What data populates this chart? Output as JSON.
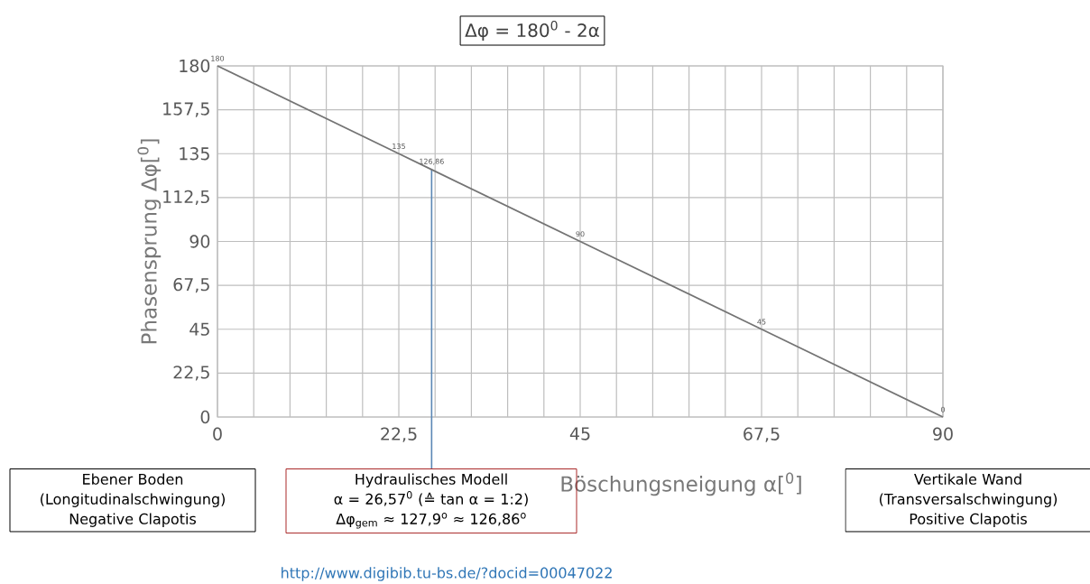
{
  "chart_data": {
    "type": "line",
    "title": "Δφ = 180$^{0}$ - 2α",
    "xlabel": "Böschungsneigung α[$^{0}$]",
    "ylabel": "Phasensprung  Δφ[$^{0}$]",
    "x": [
      0,
      22.5,
      26.57,
      45,
      67.5,
      90
    ],
    "series": [
      {
        "color": "#747474",
        "values": [
          180,
          135,
          126.86,
          90,
          45,
          0
        ],
        "value_labels": [
          "180",
          "135",
          "126,86",
          "90",
          "45",
          "0"
        ]
      }
    ],
    "xlim": [
      0,
      90
    ],
    "ylim": [
      0,
      180
    ],
    "xticks": [
      0,
      {
        "value": 4.5,
        "label": null
      },
      {
        "value": 9,
        "label": null
      },
      {
        "value": 13.5,
        "label": null
      },
      {
        "value": 18,
        "label": null
      },
      {
        "value": 22.5,
        "label": "22,5"
      },
      {
        "value": 27,
        "label": null
      },
      {
        "value": 31.5,
        "label": null
      },
      {
        "value": 36,
        "label": null
      },
      {
        "value": 40.5,
        "label": null
      },
      45,
      {
        "value": 49.5,
        "label": null
      },
      {
        "value": 54,
        "label": null
      },
      {
        "value": 58.5,
        "label": null
      },
      {
        "value": 63,
        "label": null
      },
      {
        "value": 67.5,
        "label": "67,5"
      },
      {
        "value": 72,
        "label": null
      },
      {
        "value": 76.5,
        "label": null
      },
      {
        "value": 81,
        "label": null
      },
      {
        "value": 85.5,
        "label": null
      },
      90
    ],
    "yticks": [
      0,
      {
        "value": 22.5,
        "label": "22,5"
      },
      45,
      {
        "value": 67.5,
        "label": "67,5"
      },
      90,
      {
        "value": 112.5,
        "label": "112,5"
      },
      135,
      {
        "value": 157.5,
        "label": "157,5"
      },
      180
    ],
    "grid": true,
    "ref_lines": [
      {
        "axis": "x",
        "value": 26.57,
        "color": "#5b87b5"
      }
    ],
    "annotations": [
      "Ebener Boden",
      "(Longitudinalschwingung)",
      "Negative Clapotis",
      "Hydraulisches Modell",
      "α = 26,57$^{0}$ (≙ tan α = 1:2)",
      "Δφ$_{gem}$ ≈ 127,9$^{o}$ ≈ 126,86$^{o}$",
      "Vertikale Wand",
      "(Transversalschwingung)",
      "Positive Clapotis",
      "http://www.digibib.tu-bs.de/?docid=00047022"
    ]
  }
}
